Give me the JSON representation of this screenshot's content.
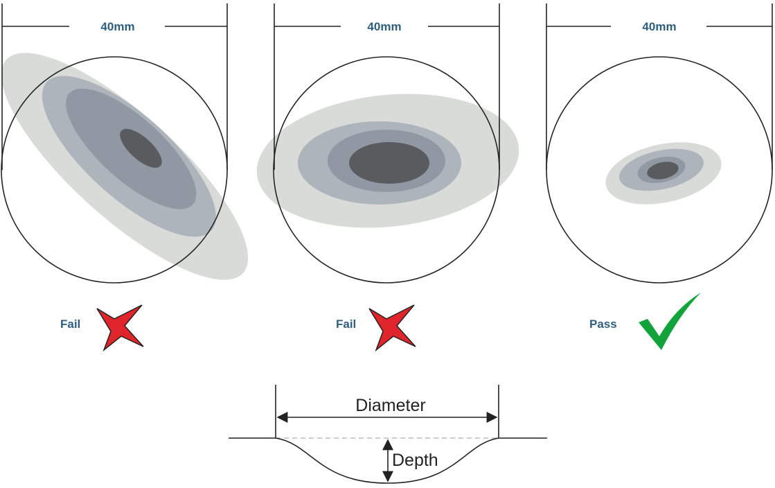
{
  "panels": [
    {
      "dimension": "40mm",
      "result": "Fail"
    },
    {
      "dimension": "40mm",
      "result": "Fail"
    },
    {
      "dimension": "40mm",
      "result": "Pass"
    }
  ],
  "profile": {
    "diameter": "Diameter",
    "depth": "Depth"
  }
}
